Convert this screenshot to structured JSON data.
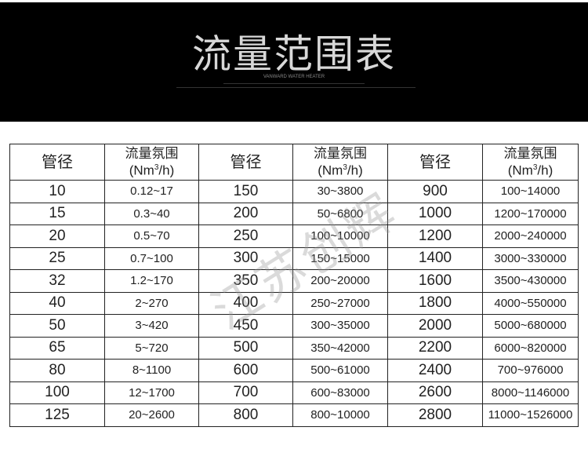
{
  "banner": {
    "title": "流量范围表",
    "subtitle": "VANWARD WATER HEATER"
  },
  "table": {
    "headers": {
      "pipe": "管径",
      "flow_line1": "流量氛围",
      "flow_line2_prefix": "(Nm",
      "flow_sup": "3",
      "flow_line2_suffix": "/h)"
    },
    "rows": [
      [
        "10",
        "0.12~17",
        "150",
        "30~3800",
        "900",
        "100~14000"
      ],
      [
        "15",
        "0.3~40",
        "200",
        "50~6800",
        "1000",
        "1200~170000"
      ],
      [
        "20",
        "0.5~70",
        "250",
        "100~10000",
        "1200",
        "2000~240000"
      ],
      [
        "25",
        "0.7~100",
        "300",
        "150~15000",
        "1400",
        "3000~330000"
      ],
      [
        "32",
        "1.2~170",
        "350",
        "200~20000",
        "1600",
        "3500~430000"
      ],
      [
        "40",
        "2~270",
        "400",
        "250~27000",
        "1800",
        "4000~550000"
      ],
      [
        "50",
        "3~420",
        "450",
        "300~35000",
        "2000",
        "5000~680000"
      ],
      [
        "65",
        "5~720",
        "500",
        "350~42000",
        "2200",
        "6000~820000"
      ],
      [
        "80",
        "8~1100",
        "600",
        "500~61000",
        "2400",
        "700~976000"
      ],
      [
        "100",
        "12~1700",
        "700",
        "600~83000",
        "2600",
        "8000~1146000"
      ],
      [
        "125",
        "20~2600",
        "800",
        "800~10000",
        "2800",
        "11000~1526000"
      ]
    ]
  },
  "watermark": "江苏创辉"
}
